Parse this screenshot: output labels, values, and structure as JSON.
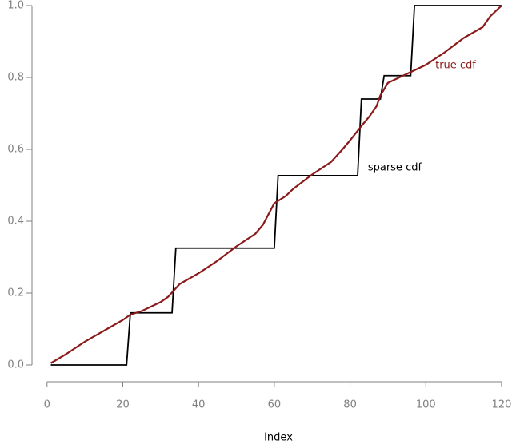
{
  "chart_data": {
    "type": "line",
    "x_label": "Index",
    "xlim": [
      -3.76,
      124.76
    ],
    "ylim": [
      -0.04,
      1.04
    ],
    "xticks": [
      0,
      20,
      40,
      60,
      80,
      100,
      120
    ],
    "yticks": [
      {
        "value": 0,
        "label": "0.0"
      },
      {
        "value": 0.2,
        "label": "0.2"
      },
      {
        "value": 0.4,
        "label": "0.4"
      },
      {
        "value": 0.6,
        "label": "0.6"
      },
      {
        "value": 0.8,
        "label": "0.8"
      },
      {
        "value": 1,
        "label": "1.0"
      }
    ],
    "series": [
      {
        "name": "sparse cdf",
        "color": "#000000",
        "x": [
          1,
          21,
          22,
          33,
          34,
          60,
          61,
          82,
          83,
          88,
          89,
          96,
          97,
          120
        ],
        "values": [
          0,
          0,
          0.145,
          0.145,
          0.325,
          0.325,
          0.527,
          0.527,
          0.74,
          0.74,
          0.805,
          0.805,
          1.0,
          1.0
        ]
      },
      {
        "name": "true cdf",
        "color": "#8b1a1a",
        "x": [
          1,
          5,
          10,
          15,
          20,
          22,
          25,
          30,
          32,
          35,
          40,
          45,
          50,
          55,
          57,
          60,
          63,
          65,
          70,
          75,
          78,
          80,
          83,
          85,
          87,
          88,
          90,
          95,
          100,
          105,
          110,
          115,
          117,
          120
        ],
        "values": [
          0.005,
          0.03,
          0.065,
          0.095,
          0.125,
          0.14,
          0.15,
          0.175,
          0.19,
          0.225,
          0.255,
          0.29,
          0.33,
          0.365,
          0.39,
          0.45,
          0.47,
          0.49,
          0.53,
          0.565,
          0.6,
          0.625,
          0.665,
          0.69,
          0.72,
          0.75,
          0.785,
          0.81,
          0.835,
          0.87,
          0.91,
          0.94,
          0.97,
          1.0
        ]
      }
    ]
  }
}
